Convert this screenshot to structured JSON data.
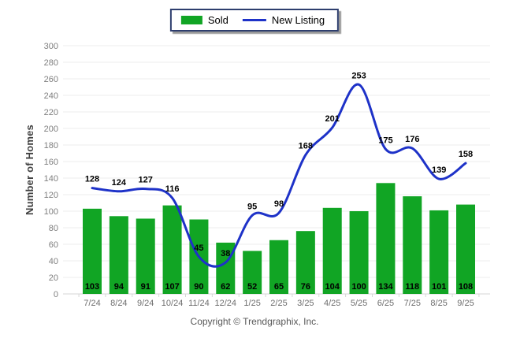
{
  "legend": {
    "items": [
      {
        "label": "Sold",
        "swatch": "bar-swatch"
      },
      {
        "label": "New Listing",
        "swatch": "line-swatch"
      }
    ]
  },
  "footer": {
    "copyright": "Copyright © Trendgraphix, Inc."
  },
  "colors": {
    "bar_green": "#11a524",
    "line_blue": "#1e32c8",
    "legend_border": "#2e3e6e",
    "grid": "#ececec",
    "baseline": "#d6d6d6",
    "tick_mark": "#d6d6d6",
    "y_tick_text": "#7f7f7f",
    "x_tick_text": "#6e6e6e",
    "value_label": "#000000"
  },
  "chart_data": {
    "type": "bar",
    "categories": [
      "7/24",
      "8/24",
      "9/24",
      "10/24",
      "11/24",
      "12/24",
      "1/25",
      "2/25",
      "3/25",
      "4/25",
      "5/25",
      "6/25",
      "7/25",
      "8/25",
      "9/25"
    ],
    "series": [
      {
        "name": "Sold",
        "type": "bar",
        "color": "#11a524",
        "values": [
          103,
          94,
          91,
          107,
          90,
          62,
          52,
          65,
          76,
          104,
          100,
          134,
          118,
          101,
          108
        ]
      },
      {
        "name": "New Listing",
        "type": "line",
        "color": "#1e32c8",
        "values": [
          128,
          124,
          127,
          116,
          45,
          38,
          95,
          98,
          168,
          201,
          253,
          175,
          176,
          139,
          158
        ]
      }
    ],
    "title": "",
    "xlabel": "",
    "ylabel": "Number of Homes",
    "ylim": [
      0,
      300
    ],
    "ytick_step": 20,
    "grid": true,
    "data_labels": true,
    "legend_position": "top-center"
  }
}
